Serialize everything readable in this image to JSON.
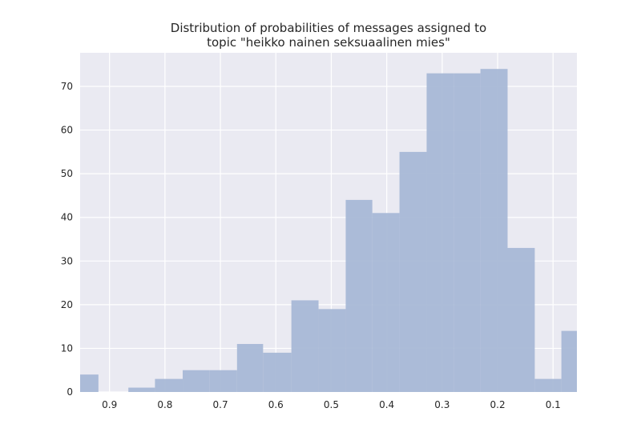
{
  "chart_data": {
    "type": "bar",
    "title_lines": [
      "Distribution of probabilities of messages assigned to",
      "topic \"heikko nainen seksuaalinen mies\""
    ],
    "xlabel": "",
    "ylabel": "",
    "x_reversed": true,
    "xlim": [
      0.953,
      0.057
    ],
    "ylim": [
      0,
      77.7
    ],
    "xticks": [
      0.9,
      0.8,
      0.7,
      0.6,
      0.5,
      0.4,
      0.3,
      0.2,
      0.1
    ],
    "xtick_labels": [
      "0.9",
      "0.8",
      "0.7",
      "0.6",
      "0.5",
      "0.4",
      "0.3",
      "0.2",
      "0.1"
    ],
    "yticks": [
      0,
      10,
      20,
      30,
      40,
      50,
      60,
      70
    ],
    "ytick_labels": [
      "0",
      "10",
      "20",
      "30",
      "40",
      "50",
      "60",
      "70"
    ],
    "grid": true,
    "bin_edges": [
      0.953,
      0.92,
      0.866,
      0.818,
      0.768,
      0.72,
      0.67,
      0.623,
      0.572,
      0.523,
      0.474,
      0.426,
      0.377,
      0.328,
      0.279,
      0.231,
      0.182,
      0.133,
      0.085,
      0.057
    ],
    "values": [
      4,
      0,
      1,
      3,
      5,
      5,
      11,
      9,
      21,
      19,
      44,
      41,
      55,
      73,
      73,
      74,
      33,
      3,
      14
    ],
    "colors": {
      "bar": "#a8b8d6",
      "background": "#eaeaf2",
      "grid": "#ffffff",
      "text": "#262626"
    }
  }
}
